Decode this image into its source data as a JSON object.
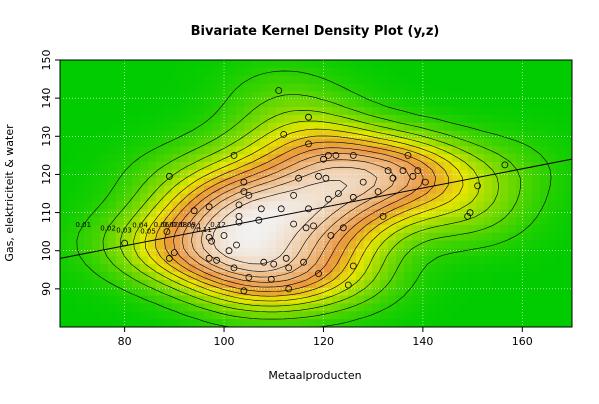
{
  "chart_data": {
    "type": "scatter",
    "title": "Bivariate Kernel Density Plot (y,z)",
    "xlabel": "Metaalproducten",
    "ylabel": "Gas, elektriciteit & water",
    "xlim": [
      67,
      170
    ],
    "ylim": [
      80,
      150
    ],
    "xticks": [
      "80",
      "100",
      "120",
      "140",
      "160"
    ],
    "yticks": [
      "90",
      "100",
      "110",
      "120",
      "130",
      "140",
      "150"
    ],
    "grid": true,
    "contour_labels": [
      "0.01",
      "0.02",
      "0.03",
      "0.04",
      "0.05",
      "0.06",
      "0.07",
      "0.08",
      "0.09",
      "0.1",
      "0.11",
      "0.12"
    ],
    "regression_line": {
      "x": [
        67,
        170
      ],
      "y": [
        98,
        124
      ]
    },
    "points": [
      [
        80,
        102
      ],
      [
        88.5,
        105
      ],
      [
        89,
        119.5
      ],
      [
        89,
        98
      ],
      [
        90,
        99.5
      ],
      [
        94,
        110.5
      ],
      [
        97,
        103.5
      ],
      [
        97.5,
        102.5
      ],
      [
        97,
        111.5
      ],
      [
        97,
        98
      ],
      [
        98.5,
        97.5
      ],
      [
        100,
        104
      ],
      [
        101,
        100
      ],
      [
        102,
        125
      ],
      [
        102,
        95.5
      ],
      [
        102.5,
        101.5
      ],
      [
        103,
        107.5
      ],
      [
        103,
        109
      ],
      [
        103,
        112
      ],
      [
        104,
        115.5
      ],
      [
        104,
        118
      ],
      [
        104,
        89.5
      ],
      [
        105,
        114.5
      ],
      [
        105,
        93
      ],
      [
        107,
        108
      ],
      [
        107.5,
        111
      ],
      [
        108,
        97
      ],
      [
        109.5,
        92.5
      ],
      [
        110,
        96.5
      ],
      [
        111,
        142
      ],
      [
        111.5,
        111
      ],
      [
        112,
        130.5
      ],
      [
        112.5,
        98
      ],
      [
        113,
        90
      ],
      [
        113,
        95.5
      ],
      [
        114,
        107
      ],
      [
        114,
        114.5
      ],
      [
        115,
        119
      ],
      [
        116,
        97
      ],
      [
        116.5,
        106
      ],
      [
        117,
        111
      ],
      [
        117,
        135
      ],
      [
        117,
        128
      ],
      [
        118,
        106.5
      ],
      [
        119,
        119.5
      ],
      [
        119,
        94
      ],
      [
        120,
        124
      ],
      [
        120.5,
        119
      ],
      [
        121,
        125
      ],
      [
        121,
        113.5
      ],
      [
        121.5,
        104
      ],
      [
        122.5,
        125
      ],
      [
        123,
        115
      ],
      [
        124,
        106
      ],
      [
        125,
        91
      ],
      [
        126,
        125
      ],
      [
        126,
        114
      ],
      [
        126,
        96
      ],
      [
        128,
        118
      ],
      [
        131,
        115.5
      ],
      [
        132,
        109
      ],
      [
        133,
        121
      ],
      [
        134,
        119
      ],
      [
        136,
        121
      ],
      [
        137,
        125
      ],
      [
        138,
        119.5
      ],
      [
        139,
        121
      ],
      [
        140.5,
        118
      ],
      [
        149,
        109
      ],
      [
        149.5,
        110
      ],
      [
        151,
        117
      ],
      [
        156.5,
        122.5
      ]
    ],
    "colors": {
      "outer_background": "#00b000",
      "plot_frame": "#000000",
      "regression_line": "#000000",
      "density_low": "#00cc00",
      "density_mid": "#e6e600",
      "density_high": "#f2f2f2"
    }
  }
}
